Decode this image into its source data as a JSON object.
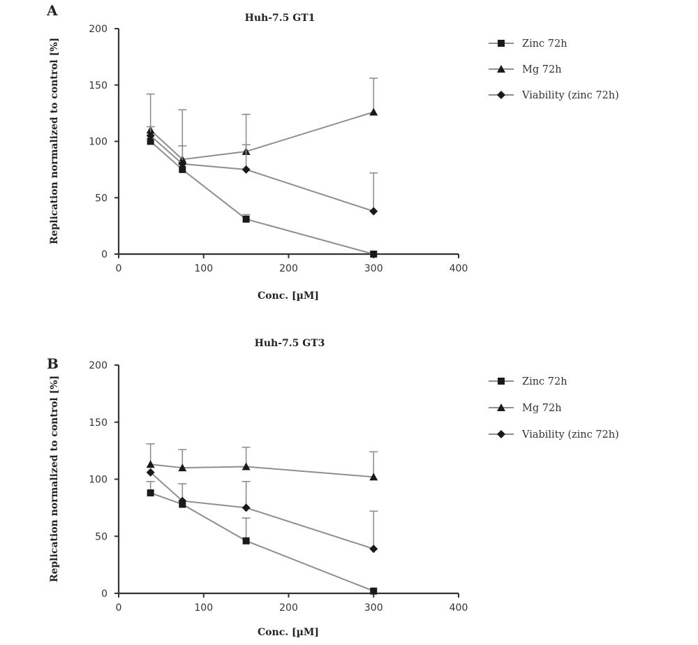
{
  "chart_data": [
    {
      "type": "line",
      "panel": "A",
      "title": "Huh-7.5 GT1",
      "xlabel": "Conc. [µM]",
      "ylabel": "Replication normalized to control [%]",
      "xlim": [
        0,
        400
      ],
      "ylim": [
        0,
        200
      ],
      "xticks": [
        "0",
        "100",
        "200",
        "300",
        "400"
      ],
      "yticks": [
        "0",
        "50",
        "100",
        "150",
        "200"
      ],
      "grid": false,
      "legend_position": "right",
      "series": [
        {
          "name": "Zinc 72h",
          "marker": "square",
          "x": [
            37.5,
            75,
            150,
            300
          ],
          "y": [
            100,
            75,
            31,
            0
          ],
          "err": [
            0,
            0,
            4,
            0
          ]
        },
        {
          "name": "Mg 72h",
          "marker": "triangle",
          "x": [
            37.5,
            75,
            150,
            300
          ],
          "y": [
            110,
            84,
            91,
            126
          ],
          "err": [
            32,
            44,
            33,
            30
          ]
        },
        {
          "name": "Viability (zinc 72h)",
          "marker": "diamond",
          "x": [
            37.5,
            75,
            150,
            300
          ],
          "y": [
            105,
            80,
            75,
            38
          ],
          "err": [
            8,
            16,
            22,
            34
          ]
        }
      ]
    },
    {
      "type": "line",
      "panel": "B",
      "title": "Huh-7.5 GT3",
      "xlabel": "Conc. [µM]",
      "ylabel": "Replication normalized to control [%]",
      "xlim": [
        0,
        400
      ],
      "ylim": [
        0,
        200
      ],
      "xticks": [
        "0",
        "100",
        "200",
        "300",
        "400"
      ],
      "yticks": [
        "0",
        "50",
        "100",
        "150",
        "200"
      ],
      "grid": false,
      "legend_position": "right",
      "series": [
        {
          "name": "Zinc 72h",
          "marker": "square",
          "x": [
            37.5,
            75,
            150,
            300
          ],
          "y": [
            88,
            78,
            46,
            2
          ],
          "err": [
            10,
            0,
            20,
            0
          ]
        },
        {
          "name": "Mg 72h",
          "marker": "triangle",
          "x": [
            37.5,
            75,
            150,
            300
          ],
          "y": [
            113,
            110,
            111,
            102
          ],
          "err": [
            18,
            16,
            17,
            22
          ]
        },
        {
          "name": "Viability (zinc 72h)",
          "marker": "diamond",
          "x": [
            37.5,
            75,
            150,
            300
          ],
          "y": [
            106,
            81,
            75,
            39
          ],
          "err": [
            0,
            15,
            23,
            33
          ]
        }
      ]
    }
  ]
}
